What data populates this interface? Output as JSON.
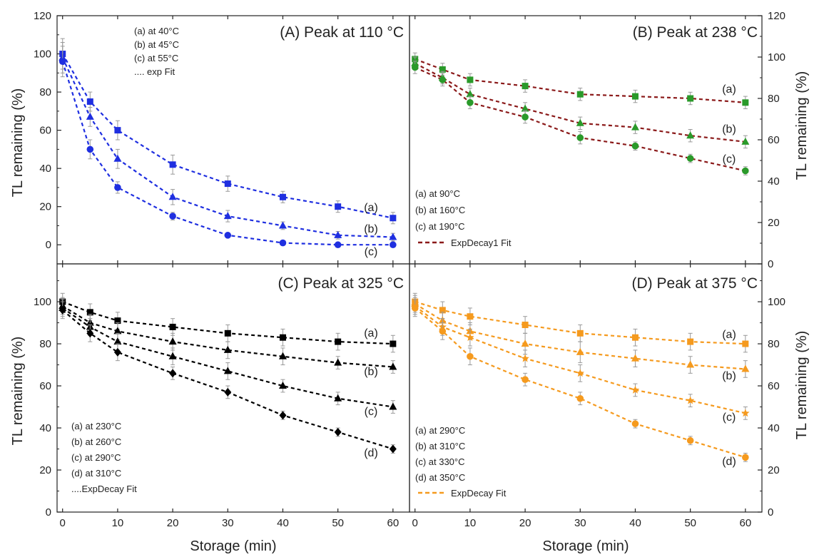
{
  "axis": {
    "ylabel": "TL remaining (%)",
    "xlabel": "Storage (min)"
  },
  "chart_data": [
    {
      "type": "scatter",
      "panel": "A",
      "title": "(A) Peak at 110 °C",
      "xlim": [
        -1,
        63
      ],
      "ylim": [
        -10,
        120
      ],
      "yticks": [
        0,
        20,
        40,
        60,
        80,
        100,
        120
      ],
      "xticks": [],
      "y_axis_side": "left",
      "color": "#1f2fe0",
      "legend": [
        "(a) at 40°C",
        "(b) at 45°C",
        "(c) at 55°C",
        ".... exp Fit"
      ],
      "legend_style": "small",
      "series": [
        {
          "label": "(a)",
          "marker": "square",
          "x": [
            0,
            5,
            10,
            20,
            30,
            40,
            50,
            60
          ],
          "y": [
            100,
            75,
            60,
            42,
            32,
            25,
            20,
            14
          ],
          "err": [
            8,
            5,
            5,
            5,
            4,
            3,
            3,
            3
          ]
        },
        {
          "label": "(b)",
          "marker": "triangle",
          "x": [
            0,
            5,
            10,
            20,
            30,
            40,
            50,
            60
          ],
          "y": [
            98,
            67,
            45,
            25,
            15,
            10,
            5,
            4
          ],
          "err": [
            8,
            5,
            5,
            4,
            3,
            2,
            2,
            2
          ]
        },
        {
          "label": "(c)",
          "marker": "circle",
          "x": [
            0,
            5,
            10,
            20,
            30,
            40,
            50,
            60
          ],
          "y": [
            96,
            50,
            30,
            15,
            5,
            1,
            0,
            0
          ],
          "err": [
            8,
            5,
            3,
            2,
            1,
            1,
            1,
            1
          ]
        }
      ]
    },
    {
      "type": "scatter",
      "panel": "B",
      "title": "(B) Peak at 238 °C",
      "xlim": [
        -1,
        63
      ],
      "ylim": [
        0,
        120
      ],
      "yticks": [
        0,
        20,
        40,
        60,
        80,
        100,
        120
      ],
      "xticks": [],
      "y_axis_side": "right",
      "color": "#2a9a2a",
      "fit_color": "#8b1a1a",
      "legend": [
        "(a) at 90°C",
        "(b) at 160°C",
        "(c) at 190°C",
        "ExpDecay1 Fit"
      ],
      "legend_style": "large",
      "series": [
        {
          "label": "(a)",
          "marker": "square",
          "x": [
            0,
            5,
            10,
            20,
            30,
            40,
            50,
            60
          ],
          "y": [
            99,
            94,
            89,
            86,
            82,
            81,
            80,
            78
          ],
          "err": [
            3,
            3,
            3,
            3,
            3,
            3,
            3,
            3
          ]
        },
        {
          "label": "(b)",
          "marker": "triangle",
          "x": [
            0,
            5,
            10,
            20,
            30,
            40,
            50,
            60
          ],
          "y": [
            97,
            90,
            82,
            75,
            68,
            66,
            62,
            59
          ],
          "err": [
            3,
            3,
            3,
            3,
            3,
            3,
            3,
            3
          ]
        },
        {
          "label": "(c)",
          "marker": "circle",
          "x": [
            0,
            5,
            10,
            20,
            30,
            40,
            50,
            60
          ],
          "y": [
            95,
            89,
            78,
            71,
            61,
            57,
            51,
            45
          ],
          "err": [
            3,
            3,
            3,
            3,
            3,
            2,
            2,
            2
          ]
        }
      ]
    },
    {
      "type": "scatter",
      "panel": "C",
      "title": "(C) Peak at 325 °C",
      "xlim": [
        -1,
        63
      ],
      "ylim": [
        0,
        118
      ],
      "yticks": [
        0,
        20,
        40,
        60,
        80,
        100
      ],
      "xticks": [
        0,
        10,
        20,
        30,
        40,
        50,
        60
      ],
      "y_axis_side": "left",
      "color": "#000000",
      "legend": [
        "(a) at 230°C",
        "(b) at 260°C",
        "(c) at 290°C",
        "(d) at 310°C",
        "....ExpDecay Fit"
      ],
      "legend_style": "small",
      "series": [
        {
          "label": "(a)",
          "marker": "square",
          "x": [
            0,
            5,
            10,
            20,
            30,
            40,
            50,
            60
          ],
          "y": [
            100,
            95,
            91,
            88,
            85,
            83,
            81,
            80
          ],
          "err": [
            4,
            4,
            4,
            4,
            4,
            4,
            4,
            4
          ]
        },
        {
          "label": "(b)",
          "marker": "triangle",
          "x": [
            0,
            5,
            10,
            20,
            30,
            40,
            50,
            60
          ],
          "y": [
            98,
            90,
            86,
            81,
            77,
            74,
            71,
            69
          ],
          "err": [
            4,
            4,
            4,
            4,
            4,
            4,
            3,
            3
          ]
        },
        {
          "label": "(c)",
          "marker": "triangle",
          "x": [
            0,
            5,
            10,
            20,
            30,
            40,
            50,
            60
          ],
          "y": [
            97,
            88,
            81,
            74,
            67,
            60,
            54,
            50
          ],
          "err": [
            4,
            4,
            4,
            4,
            4,
            3,
            3,
            3
          ]
        },
        {
          "label": "(d)",
          "marker": "diamond",
          "x": [
            0,
            5,
            10,
            20,
            30,
            40,
            50,
            60
          ],
          "y": [
            96,
            85,
            76,
            66,
            57,
            46,
            38,
            30
          ],
          "err": [
            4,
            4,
            4,
            3,
            3,
            2,
            2,
            2
          ]
        }
      ]
    },
    {
      "type": "scatter",
      "panel": "D",
      "title": "(D) Peak at 375 °C",
      "xlim": [
        -1,
        63
      ],
      "ylim": [
        0,
        118
      ],
      "yticks": [
        0,
        20,
        40,
        60,
        80,
        100
      ],
      "xticks": [
        0,
        10,
        20,
        30,
        40,
        50,
        60
      ],
      "y_axis_side": "right",
      "color": "#f59a1e",
      "legend": [
        "(a) at 290°C",
        "(b) at 310°C",
        "(c) at 330°C",
        "(d) at 350°C",
        "ExpDecay Fit"
      ],
      "legend_style": "large",
      "series": [
        {
          "label": "(a)",
          "marker": "square",
          "x": [
            0,
            5,
            10,
            20,
            30,
            40,
            50,
            60
          ],
          "y": [
            100,
            96,
            93,
            89,
            85,
            83,
            81,
            80
          ],
          "err": [
            4,
            4,
            4,
            4,
            4,
            4,
            4,
            4
          ]
        },
        {
          "label": "(b)",
          "marker": "triangle",
          "x": [
            0,
            5,
            10,
            20,
            30,
            40,
            50,
            60
          ],
          "y": [
            99,
            91,
            86,
            80,
            76,
            73,
            70,
            68
          ],
          "err": [
            4,
            4,
            4,
            5,
            5,
            4,
            4,
            4
          ]
        },
        {
          "label": "(c)",
          "marker": "star",
          "x": [
            0,
            5,
            10,
            20,
            30,
            40,
            50,
            60
          ],
          "y": [
            98,
            88,
            83,
            73,
            66,
            58,
            53,
            47
          ],
          "err": [
            4,
            4,
            4,
            4,
            4,
            3,
            3,
            3
          ]
        },
        {
          "label": "(d)",
          "marker": "circle",
          "x": [
            0,
            5,
            10,
            20,
            30,
            40,
            50,
            60
          ],
          "y": [
            97,
            86,
            74,
            63,
            54,
            42,
            34,
            26
          ],
          "err": [
            4,
            4,
            4,
            3,
            3,
            2,
            2,
            2
          ]
        }
      ]
    }
  ]
}
